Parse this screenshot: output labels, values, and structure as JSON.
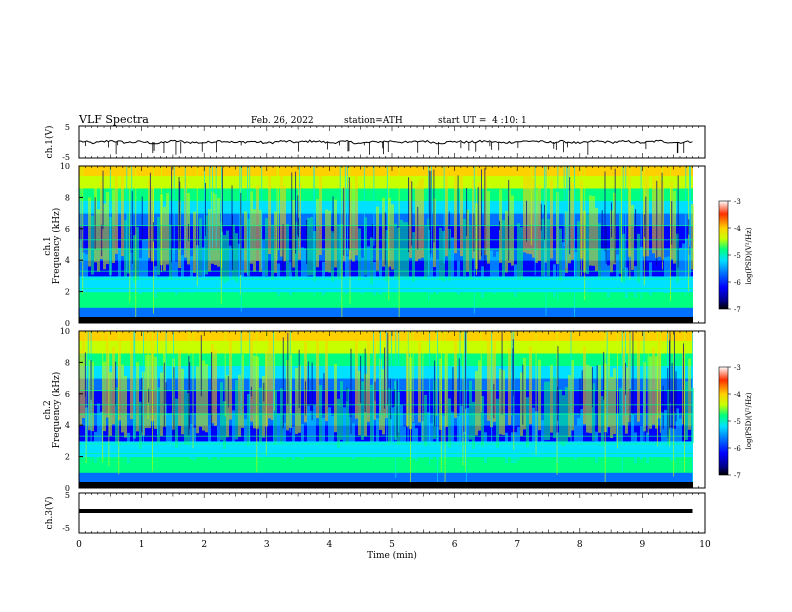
{
  "header": {
    "title": "VLF Spectra",
    "date": "Feb. 26, 2022",
    "station": "station=ATH",
    "start_time": "start UT =  4 :10: 1"
  },
  "colors": {
    "background": "#ffffff",
    "axis": "#000000",
    "spectrogram_scale": [
      "#000000",
      "#00008c",
      "#0000ff",
      "#0070ff",
      "#00e0ff",
      "#00ff80",
      "#c8ff00",
      "#ffd000",
      "#ff3000",
      "#ffffff"
    ]
  },
  "chart_data": [
    {
      "type": "line",
      "name": "ch1-waveform",
      "ylabel": "ch.1(V)",
      "ylim": [
        -5,
        5
      ],
      "y_ticks": [
        "5",
        "-5"
      ],
      "xlim": [
        0,
        10
      ],
      "x": [
        0,
        0.25,
        0.5,
        0.75,
        1.0,
        1.25,
        1.5,
        1.75,
        2.0,
        2.25,
        2.5,
        2.75,
        3.0,
        3.25,
        3.5,
        3.75,
        4.0,
        4.25,
        4.5,
        4.75,
        5.0,
        5.25,
        5.5,
        5.75,
        6.0,
        6.25,
        6.5,
        6.75,
        7.0,
        7.25,
        7.5,
        7.75,
        8.0,
        8.25,
        8.5,
        8.75,
        9.0,
        9.25,
        9.5,
        9.8
      ],
      "values": [
        0.3,
        -0.4,
        0.5,
        -0.2,
        0.1,
        -0.6,
        0.4,
        -0.1,
        -0.3,
        0.5,
        -0.2,
        0.2,
        -0.4,
        0.3,
        -0.1,
        0.4,
        -0.3,
        0.2,
        -0.5,
        0.1,
        0.3,
        -0.2,
        0.4,
        -0.4,
        0.2,
        -0.1,
        0.3,
        -0.3,
        0.1,
        0.4,
        -0.2,
        0.2,
        -0.5,
        0.3,
        -0.1,
        0.2,
        -0.3,
        0.4,
        -0.2,
        0.1
      ]
    },
    {
      "type": "heatmap",
      "name": "ch1-spectrogram",
      "ylabel_top": "ch.1",
      "ylabel": "Frequency (kHz)",
      "ylim": [
        0,
        10
      ],
      "y_ticks": [
        "0",
        "2",
        "4",
        "6",
        "8",
        "10"
      ],
      "xlim": [
        0,
        9.8
      ],
      "colorbar": {
        "label": "log(PSD)(V²/Hz)",
        "range": [
          -7,
          -3
        ],
        "ticks": [
          "-3",
          "-4",
          "-5",
          "-6",
          "-7"
        ]
      }
    },
    {
      "type": "heatmap",
      "name": "ch2-spectrogram",
      "ylabel_top": "ch.2",
      "ylabel": "Frequency (kHz)",
      "ylim": [
        0,
        10
      ],
      "y_ticks": [
        "0",
        "2",
        "4",
        "6",
        "8",
        "10"
      ],
      "xlim": [
        0,
        9.8
      ],
      "colorbar": {
        "label": "log(PSD)(V²/Hz)",
        "range": [
          -7,
          -3
        ],
        "ticks": [
          "-3",
          "-4",
          "-5",
          "-6",
          "-7"
        ]
      }
    },
    {
      "type": "line",
      "name": "ch3-waveform",
      "ylabel": "ch.3(V)",
      "ylim": [
        -5,
        5
      ],
      "y_ticks": [
        "5",
        "-5"
      ],
      "xlim": [
        0,
        10
      ],
      "x": [
        0,
        9.8
      ],
      "values": [
        0,
        0
      ]
    }
  ],
  "x_axis": {
    "label": "Time (min)",
    "range": [
      0,
      10
    ],
    "ticks": [
      "0",
      "1",
      "2",
      "3",
      "4",
      "5",
      "6",
      "7",
      "8",
      "9",
      "10"
    ]
  }
}
